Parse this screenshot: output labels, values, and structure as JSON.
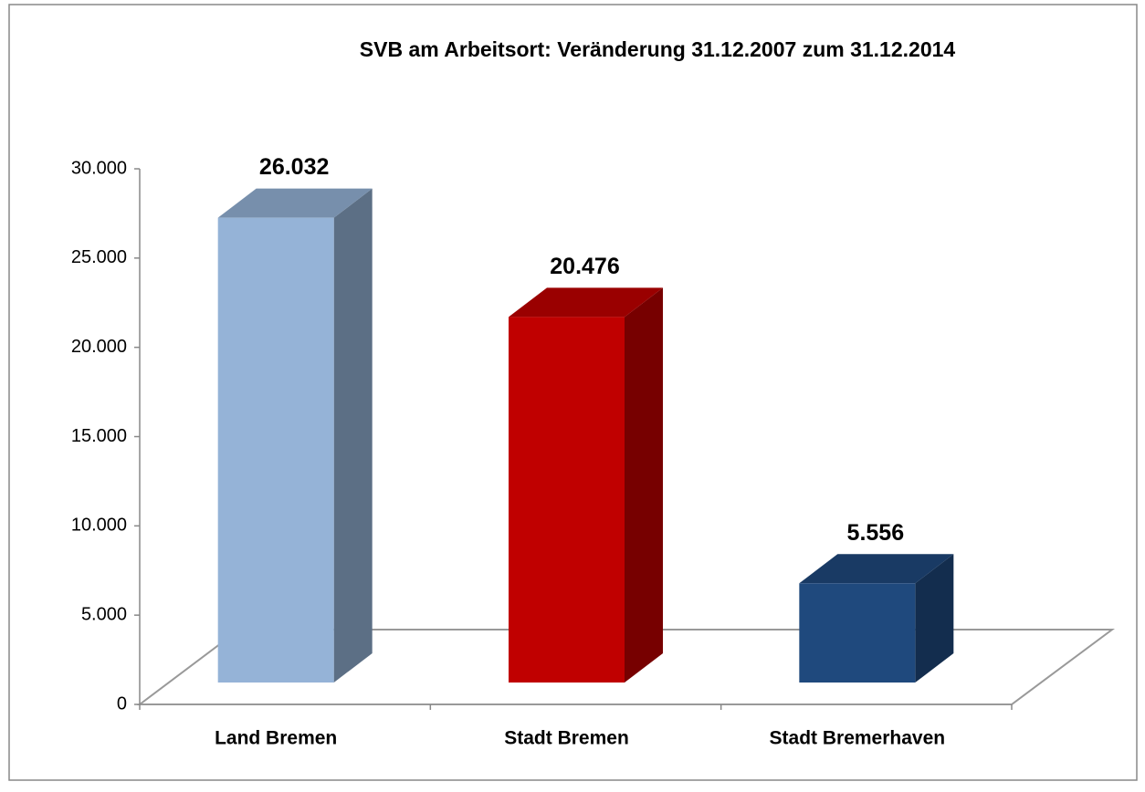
{
  "chart_data": {
    "type": "bar3d",
    "title": "SVB am Arbeitsort: Veränderung 31.12.2007 zum 31.12.2014",
    "categories": [
      "Land Bremen",
      "Stadt Bremen",
      "Stadt Bremerhaven"
    ],
    "values": [
      26032,
      20476,
      5556
    ],
    "value_labels": [
      "26.032",
      "20.476",
      "5.556"
    ],
    "colors": [
      "#95b3d7",
      "#c00000",
      "#1f497d"
    ],
    "ylim": [
      0,
      30000
    ],
    "yticks": [
      0,
      {
        "value": 5000,
        "label": "5.000"
      },
      {
        "value": 10000,
        "label": "10.000"
      },
      {
        "value": 15000,
        "label": "15.000"
      },
      {
        "value": 20000,
        "label": "20.000"
      },
      {
        "value": 25000,
        "label": "25.000"
      },
      {
        "value": 30000,
        "label": "30.000"
      }
    ]
  }
}
